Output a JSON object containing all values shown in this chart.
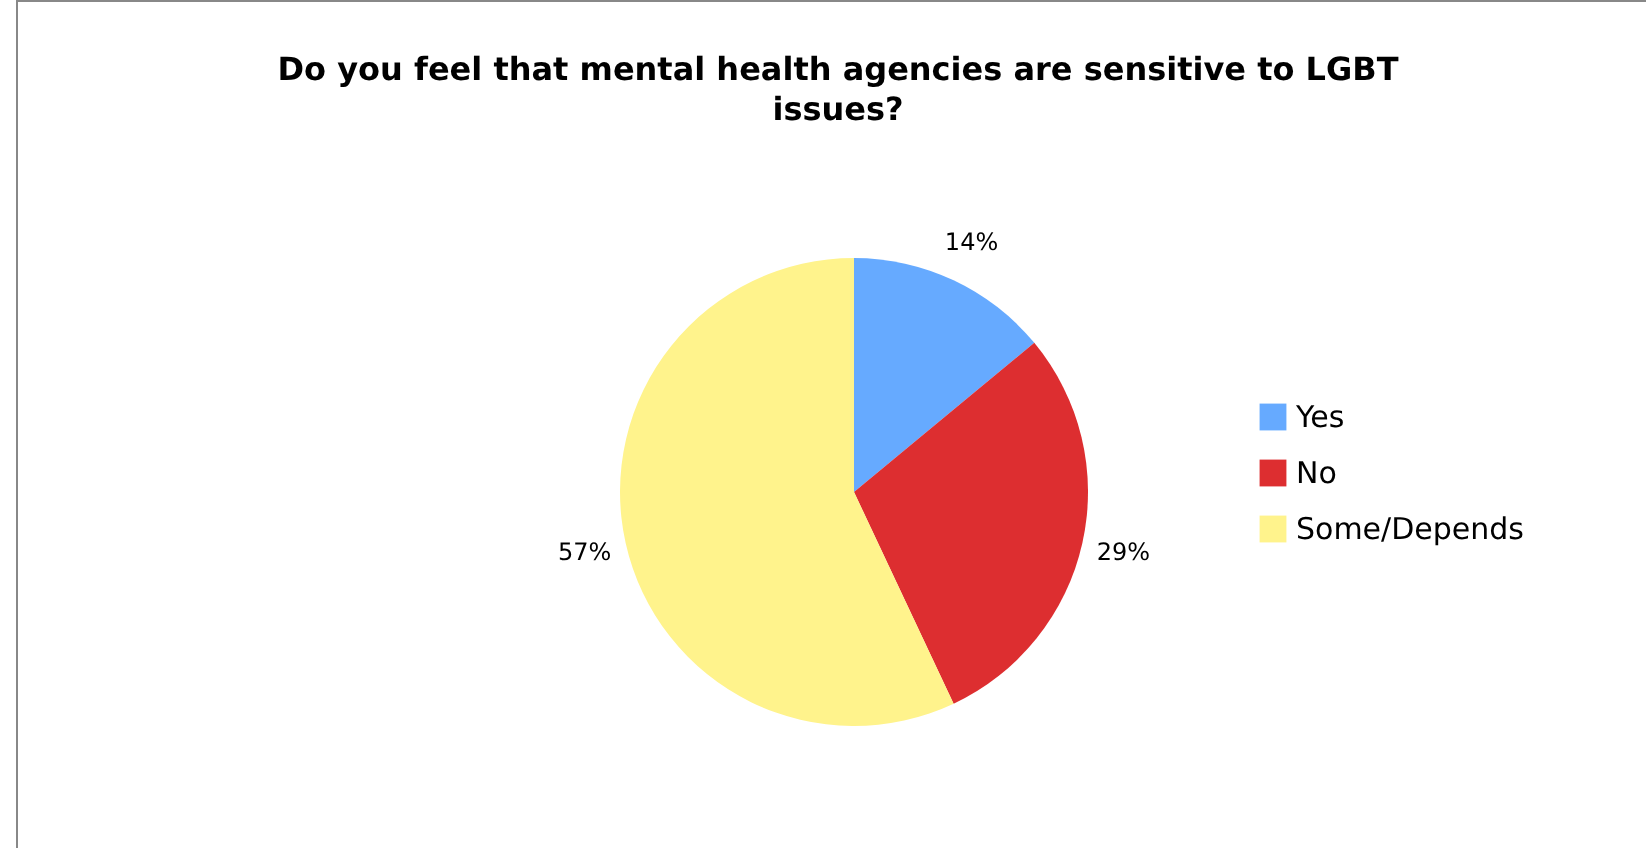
{
  "chart_data": {
    "type": "pie",
    "title": "Do you feel that mental health agencies are sensitive to LGBT issues?",
    "categories": [
      "Yes",
      "No",
      "Some/Depends"
    ],
    "values": [
      14,
      29,
      57
    ],
    "colors": [
      "#66aaff",
      "#dd2e30",
      "#fff38c"
    ],
    "value_labels": [
      "14%",
      "29%",
      "57%"
    ],
    "legend": "right"
  }
}
